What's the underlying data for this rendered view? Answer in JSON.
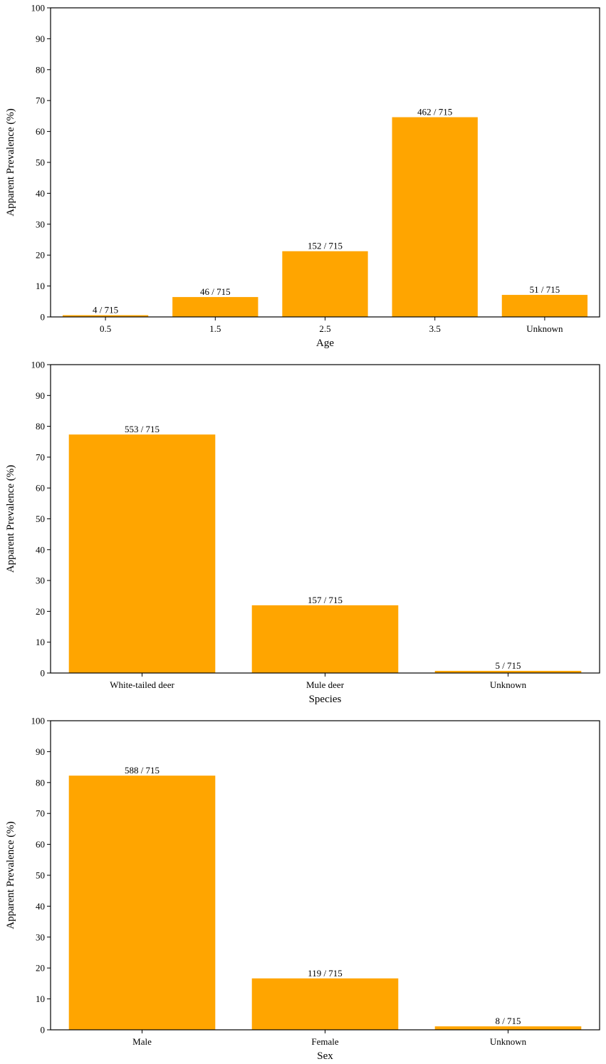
{
  "chart_data": [
    {
      "type": "bar",
      "xlabel": "Age",
      "ylabel": "Apparent Prevalence (%)",
      "ylim": [
        0,
        100
      ],
      "yticks": [
        0,
        10,
        20,
        30,
        40,
        50,
        60,
        70,
        80,
        90,
        100
      ],
      "grid": false,
      "color": "#FFA500",
      "categories": [
        "0.5",
        "1.5",
        "2.5",
        "3.5",
        "Unknown"
      ],
      "values": [
        0.56,
        6.43,
        21.26,
        64.62,
        7.13
      ],
      "bar_labels": [
        "4 / 715",
        "46 / 715",
        "152 / 715",
        "462 / 715",
        "51 / 715"
      ]
    },
    {
      "type": "bar",
      "xlabel": "Species",
      "ylabel": "Apparent Prevalence (%)",
      "ylim": [
        0,
        100
      ],
      "yticks": [
        0,
        10,
        20,
        30,
        40,
        50,
        60,
        70,
        80,
        90,
        100
      ],
      "grid": false,
      "color": "#FFA500",
      "categories": [
        "White-tailed deer",
        "Mule deer",
        "Unknown"
      ],
      "values": [
        77.34,
        21.96,
        0.7
      ],
      "bar_labels": [
        "553 / 715",
        "157 / 715",
        "5 / 715"
      ]
    },
    {
      "type": "bar",
      "xlabel": "Sex",
      "ylabel": "Apparent Prevalence (%)",
      "ylim": [
        0,
        100
      ],
      "yticks": [
        0,
        10,
        20,
        30,
        40,
        50,
        60,
        70,
        80,
        90,
        100
      ],
      "grid": false,
      "color": "#FFA500",
      "categories": [
        "Male",
        "Female",
        "Unknown"
      ],
      "values": [
        82.24,
        16.64,
        1.12
      ],
      "bar_labels": [
        "588 / 715",
        "119 / 715",
        "8 / 715"
      ]
    }
  ]
}
